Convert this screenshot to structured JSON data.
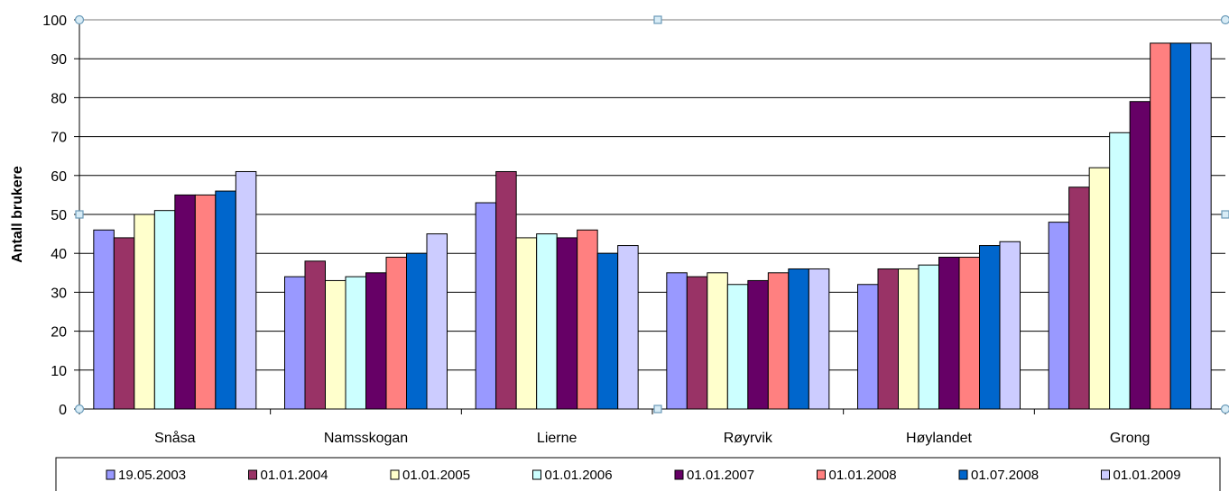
{
  "chart_data": {
    "type": "bar",
    "title": "",
    "xlabel": "",
    "ylabel": "Antall brukere",
    "ylim": [
      0,
      100
    ],
    "yticks": [
      0,
      10,
      20,
      30,
      40,
      50,
      60,
      70,
      80,
      90,
      100
    ],
    "grid": true,
    "legend_position": "bottom",
    "categories": [
      "Snåsa",
      "Namsskogan",
      "Lierne",
      "Røyrvik",
      "Høylandet",
      "Grong"
    ],
    "series": [
      {
        "name": "19.05.2003",
        "color": "#9999FF",
        "values": [
          46,
          34,
          53,
          35,
          32,
          48
        ]
      },
      {
        "name": "01.01.2004",
        "color": "#993366",
        "values": [
          44,
          38,
          61,
          34,
          36,
          57
        ]
      },
      {
        "name": "01.01.2005",
        "color": "#FFFFCC",
        "values": [
          50,
          33,
          44,
          35,
          36,
          62
        ]
      },
      {
        "name": "01.01.2006",
        "color": "#CCFFFF",
        "values": [
          51,
          34,
          45,
          32,
          37,
          71
        ]
      },
      {
        "name": "01.01.2007",
        "color": "#660066",
        "values": [
          55,
          35,
          44,
          33,
          39,
          79
        ]
      },
      {
        "name": "01.01.2008",
        "color": "#FF8080",
        "values": [
          55,
          39,
          46,
          35,
          39,
          94
        ]
      },
      {
        "name": "01.07.2008",
        "color": "#0066CC",
        "values": [
          56,
          40,
          40,
          36,
          42,
          94
        ]
      },
      {
        "name": "01.01.2009",
        "color": "#CCCCFF",
        "values": [
          61,
          45,
          42,
          36,
          43,
          94
        ]
      }
    ]
  }
}
